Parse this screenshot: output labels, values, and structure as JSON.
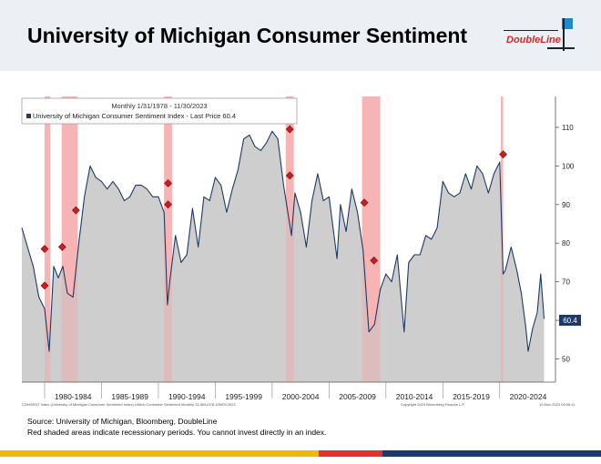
{
  "header": {
    "title": "University of Michigan Consumer Sentiment",
    "logo_text": "DoubleLine"
  },
  "chart_data": {
    "type": "area",
    "title": "Monthly 1/31/1978 - 11/30/2023",
    "legend": "University of Michigan Consumer Sentiment Index - Last Price 60.4",
    "last_price_label": "60.4",
    "ylim": [
      44,
      118
    ],
    "yticks": [
      50,
      60,
      70,
      80,
      90,
      100,
      110
    ],
    "ytick_labels": [
      "50",
      "60",
      "70",
      "80",
      "90",
      "100",
      "110"
    ],
    "xlim": [
      1978.0,
      2024.9
    ],
    "x_labels": [
      "1980-1984",
      "1985-1989",
      "1990-1994",
      "1995-1999",
      "2000-2004",
      "2005-2009",
      "2010-2014",
      "2015-2019",
      "2020-2024"
    ],
    "x_label_centers": [
      1982.5,
      1987.5,
      1992.5,
      1997.5,
      2002.5,
      2007.5,
      2012.5,
      2017.5,
      2022.5
    ],
    "x_bounds": [
      1980,
      1985,
      1990,
      1995,
      2000,
      2005,
      2010,
      2015,
      2020
    ],
    "recessions": [
      [
        1980.0,
        1980.5
      ],
      [
        1981.5,
        1982.9
      ],
      [
        1990.5,
        1991.2
      ],
      [
        2001.2,
        2001.9
      ],
      [
        2007.9,
        2009.5
      ],
      [
        2020.1,
        2020.3
      ]
    ],
    "series": [
      {
        "name": "University of Michigan Consumer Sentiment Index",
        "x": [
          1978.0,
          1978.5,
          1979.0,
          1979.5,
          1980.0,
          1980.4,
          1980.8,
          1981.2,
          1981.6,
          1982.0,
          1982.5,
          1983.0,
          1983.5,
          1984.0,
          1984.5,
          1985.0,
          1985.5,
          1986.0,
          1986.5,
          1987.0,
          1987.5,
          1988.0,
          1988.5,
          1989.0,
          1989.5,
          1990.0,
          1990.5,
          1990.8,
          1991.0,
          1991.5,
          1992.0,
          1992.5,
          1993.0,
          1993.5,
          1994.0,
          1994.5,
          1995.0,
          1995.5,
          1996.0,
          1996.5,
          1997.0,
          1997.5,
          1998.0,
          1998.5,
          1999.0,
          1999.5,
          2000.0,
          2000.5,
          2001.0,
          2001.7,
          2002.0,
          2002.5,
          2003.0,
          2003.5,
          2004.0,
          2004.5,
          2005.0,
          2005.7,
          2006.0,
          2006.5,
          2007.0,
          2007.5,
          2008.0,
          2008.5,
          2009.0,
          2009.5,
          2010.0,
          2010.5,
          2011.0,
          2011.6,
          2012.0,
          2012.5,
          2013.0,
          2013.5,
          2014.0,
          2014.5,
          2015.0,
          2015.5,
          2016.0,
          2016.5,
          2017.0,
          2017.5,
          2018.0,
          2018.5,
          2019.0,
          2019.5,
          2020.0,
          2020.3,
          2020.5,
          2021.0,
          2021.5,
          2021.9,
          2022.3,
          2022.5,
          2022.9,
          2023.3,
          2023.6,
          2023.9
        ],
        "values": [
          84,
          79,
          74,
          66,
          63,
          52,
          74,
          71,
          74,
          67,
          66,
          80,
          92,
          100,
          97,
          96,
          94,
          96,
          94,
          91,
          92,
          95,
          95,
          94,
          92,
          92,
          88,
          64,
          70,
          82,
          75,
          77,
          89,
          79,
          92,
          91,
          97,
          95,
          88,
          94,
          99,
          107,
          108,
          105,
          104,
          106,
          109,
          107,
          95,
          82,
          93,
          88,
          79,
          91,
          98,
          91,
          92,
          76,
          90,
          83,
          94,
          88,
          78,
          57,
          59,
          68,
          72,
          70,
          77,
          57,
          75,
          77,
          77,
          82,
          81,
          84,
          96,
          93,
          92,
          93,
          98,
          94,
          100,
          98,
          93,
          98,
          101,
          72,
          73,
          79,
          73,
          67,
          58,
          52,
          58,
          62,
          72,
          60.4
        ]
      }
    ],
    "xlabel": "",
    "ylabel": ""
  },
  "bottom_text": {
    "left": "CONSENT Index (University of Michigan Consumer Sentiment Index) UMich Consumer Sentiment  Monthly 31JAN1978-10NOV2023",
    "right": "Copyright 2023 Bloomberg Finance L.P.",
    "date": "10-Nov-2023 09:06:11"
  },
  "footer": {
    "source": "Source: University of Michigan, Bloomberg, DoubleLine",
    "note": "Red shaded areas indicate recessionary periods. You cannot invest directly in an index."
  },
  "colors": {
    "line": "#1d3a66",
    "area": "#c9c9c9",
    "recession": "#f5a6a6",
    "marker": "#c81e1e",
    "stripe_yellow": "#f2b705",
    "stripe_red": "#e03232",
    "stripe_navy": "#1c3a6b"
  }
}
